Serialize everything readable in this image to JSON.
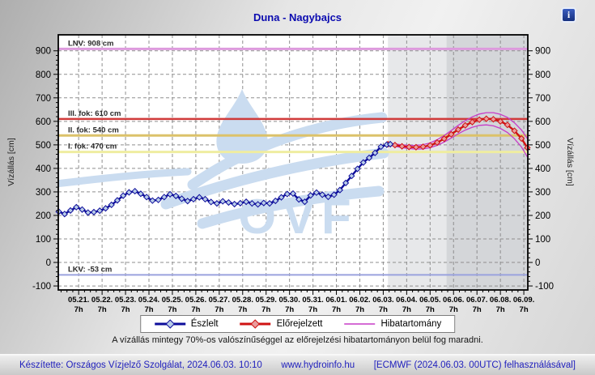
{
  "header": {
    "title": "Duna - Nagybajcs",
    "info_icon_glyph": "i"
  },
  "note": "A vízállás mintegy 70%-os valószínűséggel az előrejelzési hibatartományon belül fog maradni.",
  "footer": {
    "left": "Készítette: Országos Vízjelző Szolgálat, 2024.06.03. 10:10",
    "site": "www.hydroinfo.hu",
    "right": "[ECMWF (2024.06.03. 00UTC) felhasználásával]"
  },
  "chart_data": {
    "type": "line",
    "title": "Duna - Nagybajcs",
    "watermark_text": "OVF",
    "watermark_color": "#cadcf0",
    "grid_color": "#8f8f8f",
    "y_axis": {
      "label": "Vízállás [cm]",
      "min": -117,
      "max": 968,
      "ticks": [
        -100,
        0,
        100,
        200,
        300,
        400,
        500,
        600,
        700,
        800,
        900
      ],
      "minor_step": 20
    },
    "x_axis": {
      "day_min": -0.87,
      "day_max": 19.17,
      "sub_label": "7h",
      "dates": [
        "05.21.",
        "05.22.",
        "05.23.",
        "05.24.",
        "05.25.",
        "05.26.",
        "05.27.",
        "05.28.",
        "05.29.",
        "05.30.",
        "05.31.",
        "06.01.",
        "06.02.",
        "06.03.",
        "06.04.",
        "06.05.",
        "06.06.",
        "06.07.",
        "06.08.",
        "06.09."
      ]
    },
    "reference_lines": [
      {
        "name": "LNV",
        "label": "LNV: 908 cm",
        "value": 908,
        "color": "#dd9add",
        "width": 3
      },
      {
        "name": "III. fok",
        "label": "III. fok: 610 cm",
        "value": 610,
        "color": "#d03a3a",
        "width": 2.5
      },
      {
        "name": "II. fok",
        "label": "II. fok: 540 cm",
        "value": 540,
        "color": "#dcc26a",
        "width": 3
      },
      {
        "name": "I. fok",
        "label": "I. fok: 470 cm",
        "value": 470,
        "color": "#efeda0",
        "width": 3
      },
      {
        "name": "LKV",
        "label": "LKV: -53 cm",
        "value": -53,
        "color": "#9aa2de",
        "width": 2
      }
    ],
    "shading": [
      {
        "from_day": 13.2,
        "to_day": 15.7,
        "color": "#e7e8ea"
      },
      {
        "from_day": 15.7,
        "to_day": 19.17,
        "color": "#d4d6d9"
      }
    ],
    "series": [
      {
        "name": "Észlelt",
        "role": "observed",
        "color": "#0d0d9b",
        "marker_fill": "#b9cde8",
        "points": [
          [
            -0.85,
            216
          ],
          [
            -0.6,
            206
          ],
          [
            -0.35,
            221
          ],
          [
            -0.1,
            235
          ],
          [
            0.15,
            225
          ],
          [
            0.4,
            212
          ],
          [
            0.65,
            214
          ],
          [
            0.9,
            220
          ],
          [
            1.15,
            230
          ],
          [
            1.4,
            245
          ],
          [
            1.65,
            264
          ],
          [
            1.9,
            284
          ],
          [
            2.15,
            298
          ],
          [
            2.4,
            303
          ],
          [
            2.65,
            292
          ],
          [
            2.9,
            278
          ],
          [
            3.15,
            263
          ],
          [
            3.4,
            266
          ],
          [
            3.65,
            278
          ],
          [
            3.9,
            290
          ],
          [
            4.15,
            283
          ],
          [
            4.4,
            271
          ],
          [
            4.65,
            261
          ],
          [
            4.9,
            269
          ],
          [
            5.15,
            277
          ],
          [
            5.4,
            269
          ],
          [
            5.65,
            257
          ],
          [
            5.9,
            251
          ],
          [
            6.15,
            260
          ],
          [
            6.4,
            255
          ],
          [
            6.65,
            248
          ],
          [
            6.9,
            252
          ],
          [
            7.15,
            258
          ],
          [
            7.4,
            251
          ],
          [
            7.65,
            247
          ],
          [
            7.9,
            253
          ],
          [
            8.15,
            251
          ],
          [
            8.4,
            262
          ],
          [
            8.65,
            277
          ],
          [
            8.9,
            291
          ],
          [
            9.15,
            293
          ],
          [
            9.4,
            268
          ],
          [
            9.65,
            258
          ],
          [
            9.9,
            285
          ],
          [
            10.15,
            297
          ],
          [
            10.4,
            288
          ],
          [
            10.65,
            279
          ],
          [
            10.9,
            288
          ],
          [
            11.15,
            308
          ],
          [
            11.4,
            338
          ],
          [
            11.65,
            368
          ],
          [
            11.9,
            398
          ],
          [
            12.15,
            425
          ],
          [
            12.4,
            445
          ],
          [
            12.65,
            466
          ],
          [
            12.9,
            492
          ],
          [
            13.15,
            501
          ],
          [
            13.3,
            503
          ]
        ]
      },
      {
        "name": "Előrejelzett",
        "role": "forecast",
        "color": "#cf1212",
        "marker_fill": "#ea9c9c",
        "points": [
          [
            13.2,
            503
          ],
          [
            13.5,
            499
          ],
          [
            13.8,
            494
          ],
          [
            14.1,
            491
          ],
          [
            14.4,
            490
          ],
          [
            14.7,
            492
          ],
          [
            15.0,
            498
          ],
          [
            15.3,
            510
          ],
          [
            15.6,
            526
          ],
          [
            15.9,
            545
          ],
          [
            16.2,
            565
          ],
          [
            16.5,
            583
          ],
          [
            16.8,
            597
          ],
          [
            17.1,
            607
          ],
          [
            17.4,
            611
          ],
          [
            17.7,
            609
          ],
          [
            18.0,
            600
          ],
          [
            18.3,
            585
          ],
          [
            18.6,
            560
          ],
          [
            18.9,
            527
          ],
          [
            19.15,
            488
          ]
        ]
      },
      {
        "name": "Hibatartomány",
        "role": "error-band",
        "color": "#c73cc7",
        "upper": [
          [
            13.2,
            507
          ],
          [
            13.5,
            504
          ],
          [
            13.8,
            500
          ],
          [
            14.1,
            498
          ],
          [
            14.4,
            498
          ],
          [
            14.7,
            501
          ],
          [
            15.0,
            508
          ],
          [
            15.3,
            522
          ],
          [
            15.6,
            540
          ],
          [
            15.9,
            561
          ],
          [
            16.2,
            583
          ],
          [
            16.5,
            603
          ],
          [
            16.8,
            619
          ],
          [
            17.1,
            631
          ],
          [
            17.4,
            637
          ],
          [
            17.7,
            637
          ],
          [
            18.0,
            630
          ],
          [
            18.3,
            617
          ],
          [
            18.6,
            594
          ],
          [
            18.9,
            563
          ],
          [
            19.15,
            527
          ]
        ],
        "lower": [
          [
            13.2,
            499
          ],
          [
            13.5,
            494
          ],
          [
            13.8,
            488
          ],
          [
            14.1,
            484
          ],
          [
            14.4,
            482
          ],
          [
            14.7,
            483
          ],
          [
            15.0,
            488
          ],
          [
            15.3,
            498
          ],
          [
            15.6,
            512
          ],
          [
            15.9,
            529
          ],
          [
            16.2,
            547
          ],
          [
            16.5,
            563
          ],
          [
            16.8,
            575
          ],
          [
            17.1,
            583
          ],
          [
            17.4,
            585
          ],
          [
            17.7,
            581
          ],
          [
            18.0,
            570
          ],
          [
            18.3,
            553
          ],
          [
            18.6,
            526
          ],
          [
            18.9,
            491
          ],
          [
            19.15,
            449
          ]
        ]
      }
    ]
  }
}
